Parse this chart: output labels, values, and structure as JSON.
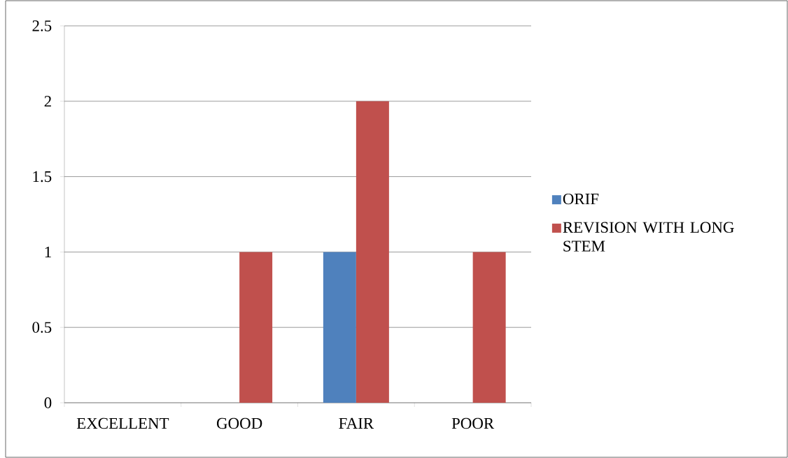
{
  "chart_data": {
    "type": "bar",
    "categories": [
      "EXCELLENT",
      "GOOD",
      "FAIR",
      "POOR"
    ],
    "series": [
      {
        "name": "ORIF",
        "color": "#4f81bd",
        "values": [
          0,
          0,
          1,
          0
        ]
      },
      {
        "name": "REVISION WITH LONG STEM",
        "color": "#c0504d",
        "values": [
          0,
          1,
          2,
          1
        ]
      }
    ],
    "ylim": [
      0,
      2.5
    ],
    "yticks": [
      0,
      0.5,
      1,
      1.5,
      2,
      2.5
    ],
    "grid": "y",
    "legend": "right"
  }
}
